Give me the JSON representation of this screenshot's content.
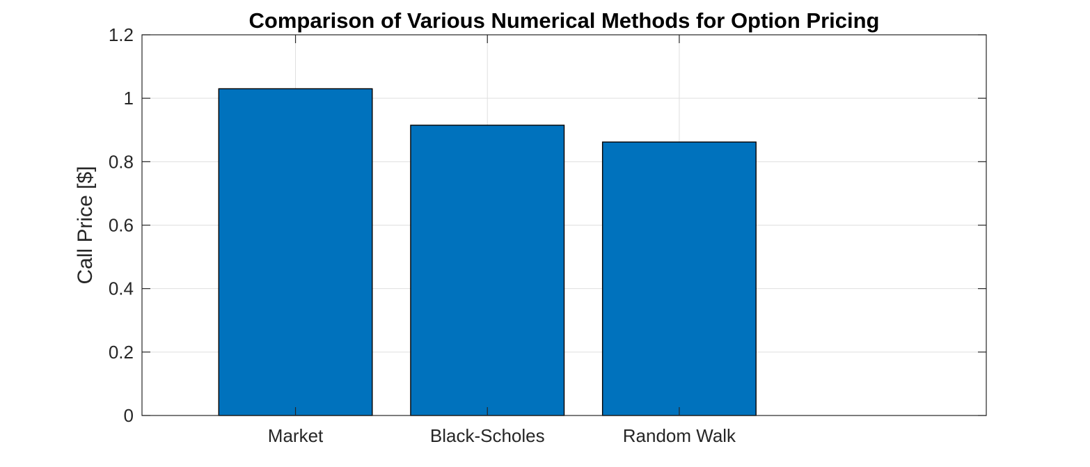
{
  "chart_data": {
    "type": "bar",
    "title": "Comparison of Various Numerical Methods for Option Pricing",
    "xlabel": "",
    "ylabel": "Call Price [$]",
    "categories": [
      "Market",
      "Black-Scholes",
      "Random Walk"
    ],
    "values": [
      1.03,
      0.915,
      0.862
    ],
    "xlim": [
      0.2,
      4.6
    ],
    "ylim": [
      0,
      1.2
    ],
    "yticks": [
      0,
      0.2,
      0.4,
      0.6,
      0.8,
      1,
      1.2
    ],
    "ytick_labels": [
      "0",
      "0.2",
      "0.4",
      "0.6",
      "0.8",
      "1",
      "1.2"
    ],
    "grid": true,
    "bar_color": "#0072BD",
    "bar_edge_color": "#000000"
  }
}
